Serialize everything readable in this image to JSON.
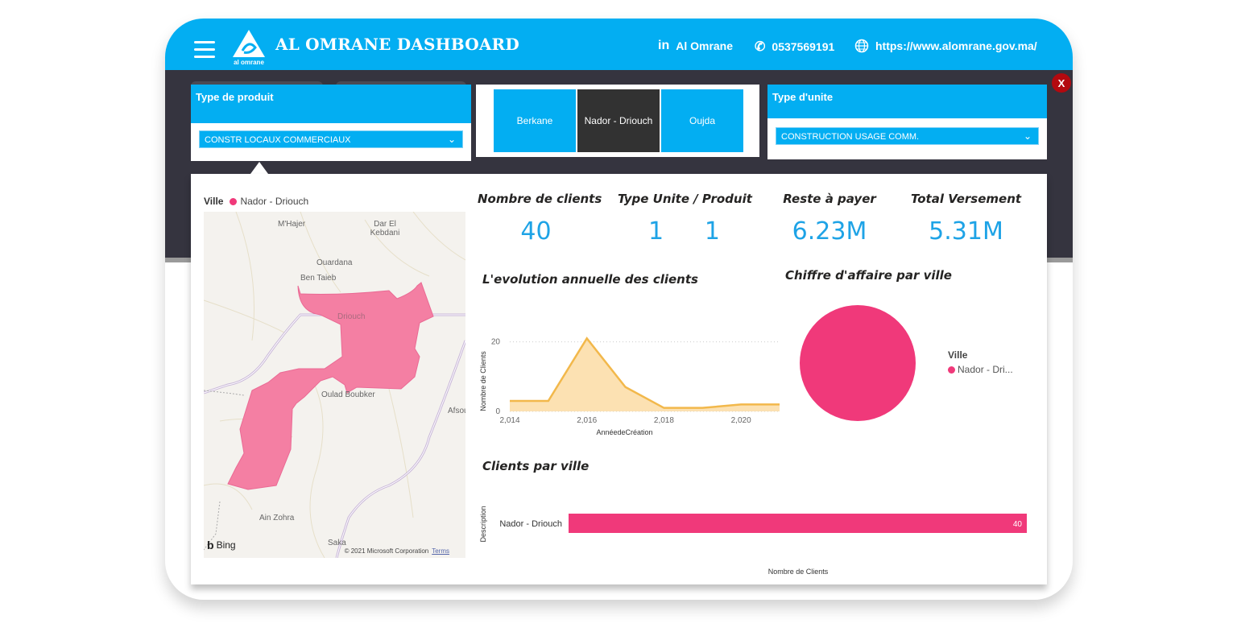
{
  "header": {
    "title": "AL OMRANE DASHBOARD",
    "logo_text": "al omrane",
    "linkedin_label": "Al Omrane",
    "phone": "0537569191",
    "website": "https://www.alomrane.gov.ma/",
    "close_label": "X"
  },
  "filters": {
    "type_produit": {
      "title": "Type de produit",
      "selected": "CONSTR LOCAUX COMMERCIAUX"
    },
    "type_unite": {
      "title": "Type d'unite",
      "selected": "CONSTRUCTION USAGE COMM."
    },
    "cities": [
      {
        "label": "Berkane",
        "active": false
      },
      {
        "label": "Nador - Driouch",
        "active": true
      },
      {
        "label": "Oujda",
        "active": false
      }
    ]
  },
  "map": {
    "legend_title": "Ville",
    "legend_item": "Nador - Driouch",
    "places": [
      "M'Hajer",
      "Dar El Kebdani",
      "Ouardana",
      "Ben Taieb",
      "Driouch",
      "Oulad Boubker",
      "Afsou",
      "Ain Zohra",
      "Saka"
    ],
    "provider": "Bing",
    "copyright": "© 2021 Microsoft Corporation",
    "terms": "Terms"
  },
  "kpis": [
    {
      "title": "Nombre de clients",
      "value": "40"
    },
    {
      "title": "Type Unite / Produit",
      "value_a": "1",
      "value_b": "1"
    },
    {
      "title": "Reste à payer",
      "value": "6.23M"
    },
    {
      "title": "Total Versement",
      "value": "5.31M"
    }
  ],
  "colors": {
    "brand_blue": "#03aef2",
    "dark": "#35343f",
    "pink": "#f0397a",
    "area_line": "#f2b84b",
    "area_fill": "#fbdca5",
    "kpi_value": "#1ea3e6"
  },
  "chart_data": [
    {
      "type": "area",
      "title": "L'evolution annuelle des clients",
      "xlabel": "AnnéedeCréation",
      "ylabel": "Nombre de Clients",
      "x": [
        2014,
        2015,
        2016,
        2017,
        2018,
        2019,
        2020,
        2021
      ],
      "values": [
        3,
        3,
        21,
        7,
        1,
        1,
        2,
        2
      ],
      "xticks": [
        "2,014",
        "2,016",
        "2,018",
        "2,020"
      ],
      "xtick_values": [
        2014,
        2016,
        2018,
        2020
      ],
      "yticks": [
        "0",
        "20"
      ],
      "ytick_values": [
        0,
        20
      ],
      "ylim": [
        0,
        22
      ],
      "xlim": [
        2014,
        2021
      ],
      "grid": true
    },
    {
      "type": "pie",
      "title": "Chiffre d'affaire par ville",
      "legend_title": "Ville",
      "slices": [
        {
          "label": "Nador - Dri...",
          "value": 100
        }
      ],
      "legend": "right"
    },
    {
      "type": "bar",
      "orientation": "horizontal",
      "title": "Clients par ville",
      "ylabel": "Description",
      "xlabel": "Nombre de Clients",
      "categories": [
        "Nador - Driouch"
      ],
      "values": [
        40
      ],
      "data_labels": [
        "40"
      ],
      "xlim": [
        0,
        40
      ]
    }
  ]
}
